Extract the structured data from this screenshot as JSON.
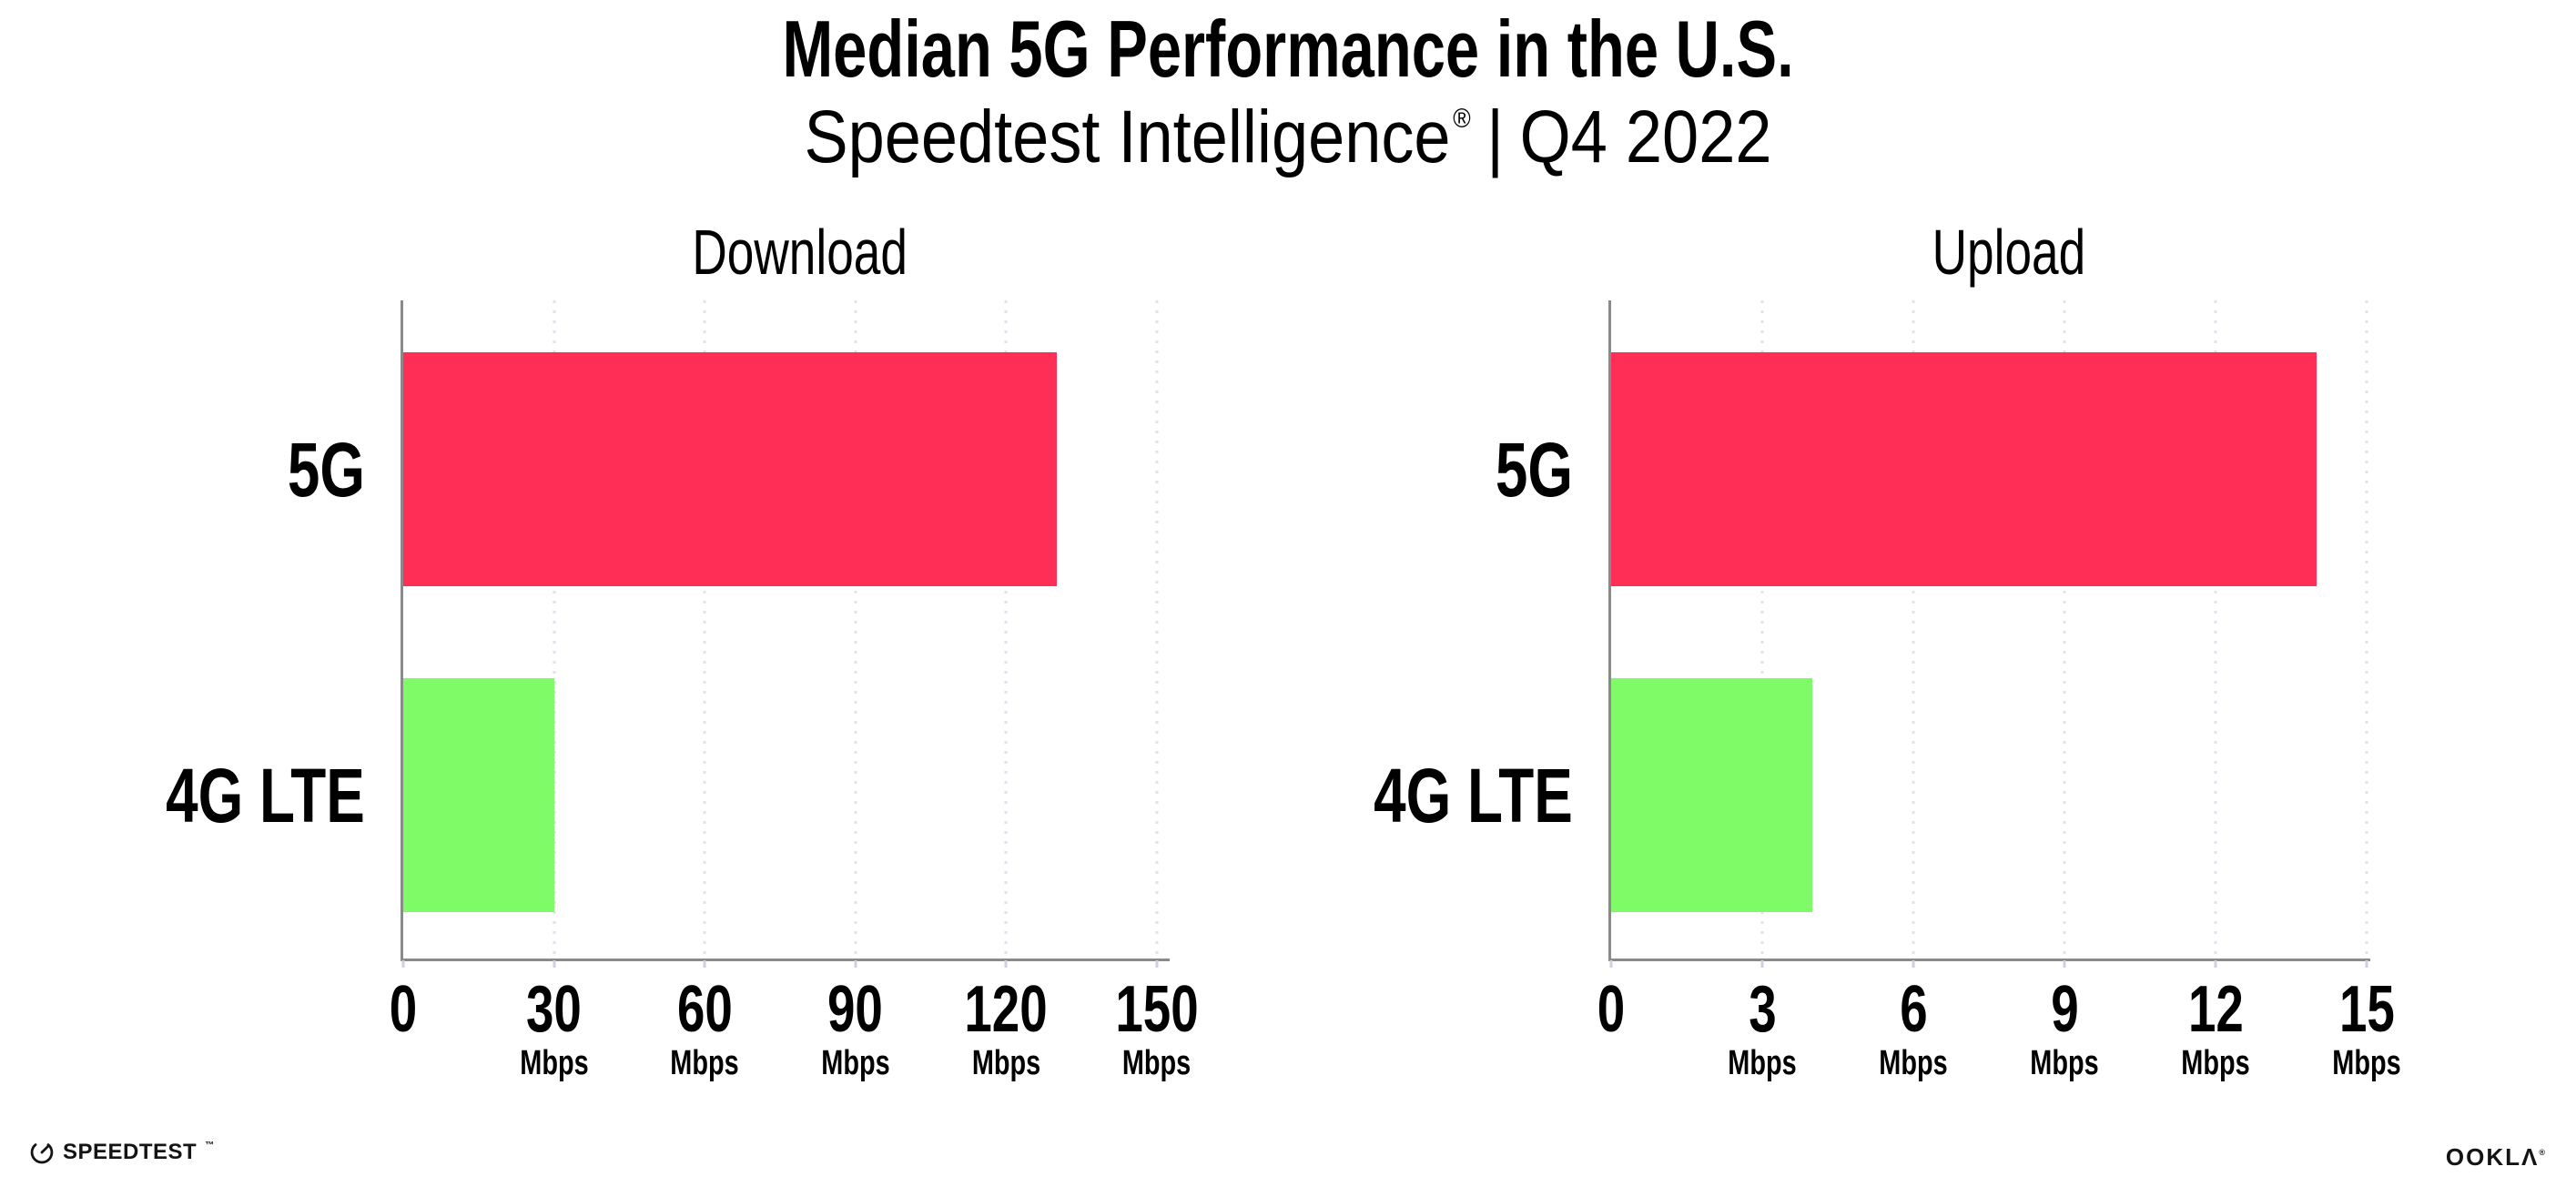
{
  "header": {
    "title": "Median 5G Performance in the U.S.",
    "subtitle_brand": "Speedtest Intelligence",
    "subtitle_reg": "®",
    "subtitle_sep": "|",
    "subtitle_period": "Q4 2022"
  },
  "chart_data": [
    {
      "type": "bar",
      "orientation": "horizontal",
      "title": "Download",
      "categories": [
        "5G",
        "4G LTE"
      ],
      "values": [
        130,
        30
      ],
      "unit": "Mbps",
      "xlim": [
        0,
        150
      ],
      "ticks": [
        0,
        30,
        60,
        90,
        120,
        150
      ],
      "bar_colors": [
        "#FF2E56",
        "#7EFB66"
      ],
      "grid": "vertical-dotted",
      "legend": "none"
    },
    {
      "type": "bar",
      "orientation": "horizontal",
      "title": "Upload",
      "categories": [
        "5G",
        "4G LTE"
      ],
      "values": [
        14,
        4
      ],
      "unit": "Mbps",
      "xlim": [
        0,
        15
      ],
      "ticks": [
        0,
        3,
        6,
        9,
        12,
        15
      ],
      "bar_colors": [
        "#FF2E56",
        "#7EFB66"
      ],
      "grid": "vertical-dotted",
      "legend": "none"
    }
  ],
  "footer": {
    "speedtest": "SPEEDTEST",
    "speedtest_tm": "™",
    "ookla": "OOKLΛ",
    "ookla_reg": "®"
  },
  "colors": {
    "bar_5g": "#FF2E56",
    "bar_4g_lte": "#7EFB66",
    "axis": "#8A8A8A",
    "grid_dot": "#E2E2EE",
    "text": "#000000"
  }
}
